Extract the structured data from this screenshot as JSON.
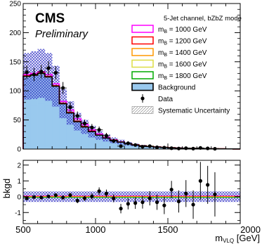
{
  "chart_data": [
    {
      "type": "bar",
      "panel": "main",
      "experiment_label": "CMS",
      "status_label": "Preliminary",
      "legend_title": "5-Jet channel, bZbZ mode",
      "legend_position": "top-right",
      "xlim": [
        500,
        2000
      ],
      "ylim": [
        0,
        250
      ],
      "y_ticks": [
        "0",
        "50",
        "100",
        "150",
        "200",
        "250"
      ],
      "bin_width": 50,
      "bin_edges_start": [
        500,
        550,
        600,
        650,
        700,
        750,
        800,
        850,
        900,
        950,
        1000,
        1050,
        1100,
        1150,
        1200,
        1250,
        1300,
        1350,
        1400,
        1450,
        1500,
        1550,
        1600,
        1650,
        1700,
        1750,
        1800,
        1850,
        1900,
        1950
      ],
      "background": {
        "name": "Background",
        "values": [
          125,
          127,
          130,
          124,
          108,
          78,
          62,
          47,
          38,
          30,
          24,
          19,
          15,
          12,
          9,
          7,
          5.5,
          4.5,
          3.5,
          2.8,
          2.2,
          1.8,
          1.4,
          1.1,
          0.9,
          0.7,
          0.5,
          0.4,
          0.3,
          0.2
        ],
        "color": "#99c9ee",
        "line_color": "#000000"
      },
      "background_partial_fill": [
        73,
        76,
        78,
        76,
        67,
        50,
        41,
        32,
        27,
        22,
        18,
        14.5,
        12,
        10,
        8,
        6.5,
        5,
        4,
        3.2,
        2.6,
        2,
        1.6,
        1.3,
        1,
        0.8,
        0.6,
        0.45,
        0.35,
        0.25,
        0.18
      ],
      "systematic_uncertainty": {
        "name": "Systematic Uncertainty",
        "up": [
          165,
          168,
          172,
          165,
          143,
          103,
          82,
          62,
          50,
          40,
          31,
          25,
          20,
          16,
          12,
          9.3,
          7.3,
          6,
          4.6,
          3.7,
          2.9,
          2.4,
          1.8,
          1.5,
          1.2,
          0.9,
          0.7,
          0.5,
          0.4,
          0.3
        ],
        "down": [
          85,
          86,
          88,
          83,
          73,
          53,
          42,
          32,
          26,
          20,
          16,
          13,
          10,
          8,
          6,
          4.7,
          3.7,
          3,
          2.4,
          1.9,
          1.5,
          1.2,
          0.9,
          0.7,
          0.6,
          0.5,
          0.3,
          0.3,
          0.2,
          0.1
        ],
        "color": "#3c3cc8"
      },
      "signals": [
        {
          "name": "1000 GeV",
          "color": "#ff00ff",
          "values": [
            128,
            130,
            133,
            128,
            112,
            82,
            67,
            52,
            42,
            33,
            26,
            20,
            15.5,
            12.3,
            9.2,
            7.1,
            5.6,
            4.6,
            3.6,
            2.8,
            2.2,
            1.8,
            1.4,
            1.1,
            0.9,
            0.7,
            0.5,
            0.4,
            0.3,
            0.2
          ]
        },
        {
          "name": "1200 GeV",
          "color": "#ff0000",
          "values": [
            126,
            128,
            131,
            125,
            109,
            79,
            63,
            48,
            39,
            31,
            25,
            20,
            15.8,
            12.6,
            9.4,
            7.2,
            5.6,
            4.6,
            3.6,
            2.8,
            2.2,
            1.8,
            1.4,
            1.1,
            0.9,
            0.7,
            0.5,
            0.4,
            0.3,
            0.2
          ]
        },
        {
          "name": "1400 GeV",
          "color": "#ff9900",
          "values": [
            125,
            127,
            130,
            124,
            108,
            78,
            62,
            47,
            38,
            30,
            24,
            19,
            15.2,
            12.3,
            9.3,
            7.4,
            5.9,
            4.8,
            3.7,
            2.9,
            2.2,
            1.8,
            1.4,
            1.1,
            0.9,
            0.7,
            0.5,
            0.4,
            0.3,
            0.2
          ]
        },
        {
          "name": "1600 GeV",
          "color": "#dddd44",
          "values": [
            125,
            127,
            130,
            124,
            108,
            78,
            62,
            47,
            38,
            30,
            24,
            19,
            15,
            12,
            9,
            7,
            5.6,
            4.6,
            3.7,
            3,
            2.4,
            1.9,
            1.5,
            1.2,
            0.9,
            0.7,
            0.5,
            0.4,
            0.3,
            0.2
          ]
        },
        {
          "name": "1800 GeV",
          "color": "#00aa00",
          "values": [
            125,
            127,
            130,
            124,
            108,
            78,
            62,
            47,
            38,
            30,
            24,
            19,
            15,
            12,
            9,
            7,
            5.5,
            4.5,
            3.5,
            2.8,
            2.2,
            1.8,
            1.5,
            1.2,
            1,
            0.8,
            0.6,
            0.4,
            0.3,
            0.2
          ]
        }
      ],
      "signal_label_prefix": "m",
      "signal_label_sub": "B",
      "signal_label_sep": " = ",
      "data_points": {
        "name": "Data",
        "x": [
          525,
          575,
          625,
          675,
          725,
          775,
          825,
          875,
          925,
          975,
          1025,
          1075,
          1125,
          1175,
          1225,
          1275,
          1325,
          1375,
          1425,
          1475,
          1525,
          1575,
          1625,
          1675,
          1725,
          1775,
          1825
        ],
        "y": [
          132,
          128,
          133,
          139,
          131,
          105,
          72,
          57,
          44,
          37,
          33,
          23,
          14,
          5,
          10,
          7,
          4,
          5,
          3,
          2.5,
          1.5,
          1,
          1.5,
          0.8,
          2,
          1.2,
          0.5
        ],
        "yerr": [
          11.5,
          11.3,
          11.5,
          11.8,
          11.4,
          10.2,
          8.5,
          7.5,
          6.6,
          6.1,
          5.7,
          4.8,
          3.7,
          2.2,
          3.2,
          2.6,
          2,
          2.2,
          1.7,
          1.6,
          1.2,
          1,
          1.2,
          0.9,
          1.4,
          1.1,
          0.7
        ]
      }
    },
    {
      "type": "scatter",
      "panel": "ratio",
      "ylabel": "bkgd",
      "xlabel_main": "m",
      "xlabel_sub": "VLQ",
      "xlabel_unit": " [GeV]",
      "xlim": [
        500,
        2000
      ],
      "ylim": [
        -1.7,
        2.3
      ],
      "x_ticks": [
        "500",
        "1000",
        "1500",
        "2000"
      ],
      "y_ticks": [
        "-1",
        "0",
        "1",
        "2"
      ],
      "uncertainty_band": [
        -0.33,
        0.33
      ],
      "points": {
        "x": [
          525,
          575,
          625,
          675,
          725,
          775,
          825,
          875,
          925,
          975,
          1025,
          1075,
          1125,
          1175,
          1225,
          1275,
          1325,
          1375,
          1425,
          1475,
          1525,
          1575,
          1625,
          1675,
          1725,
          1775,
          1825
        ],
        "y": [
          -0.1,
          -0.02,
          -0.05,
          0.02,
          0.1,
          -0.05,
          0.1,
          -0.25,
          -0.1,
          0.02,
          0.35,
          0.2,
          -0.1,
          -0.75,
          -0.45,
          -0.4,
          -0.35,
          -0.1,
          -0.35,
          -0.55,
          0.45,
          -0.3,
          0.2,
          -0.5,
          1.0,
          0.75,
          0.15
        ],
        "yerr": [
          0.09,
          0.09,
          0.09,
          0.09,
          0.1,
          0.13,
          0.14,
          0.16,
          0.17,
          0.2,
          0.24,
          0.25,
          0.25,
          0.3,
          0.35,
          0.37,
          0.4,
          0.45,
          0.48,
          0.55,
          0.55,
          0.7,
          0.85,
          0.9,
          1.2,
          1.2,
          1.4
        ]
      }
    }
  ]
}
